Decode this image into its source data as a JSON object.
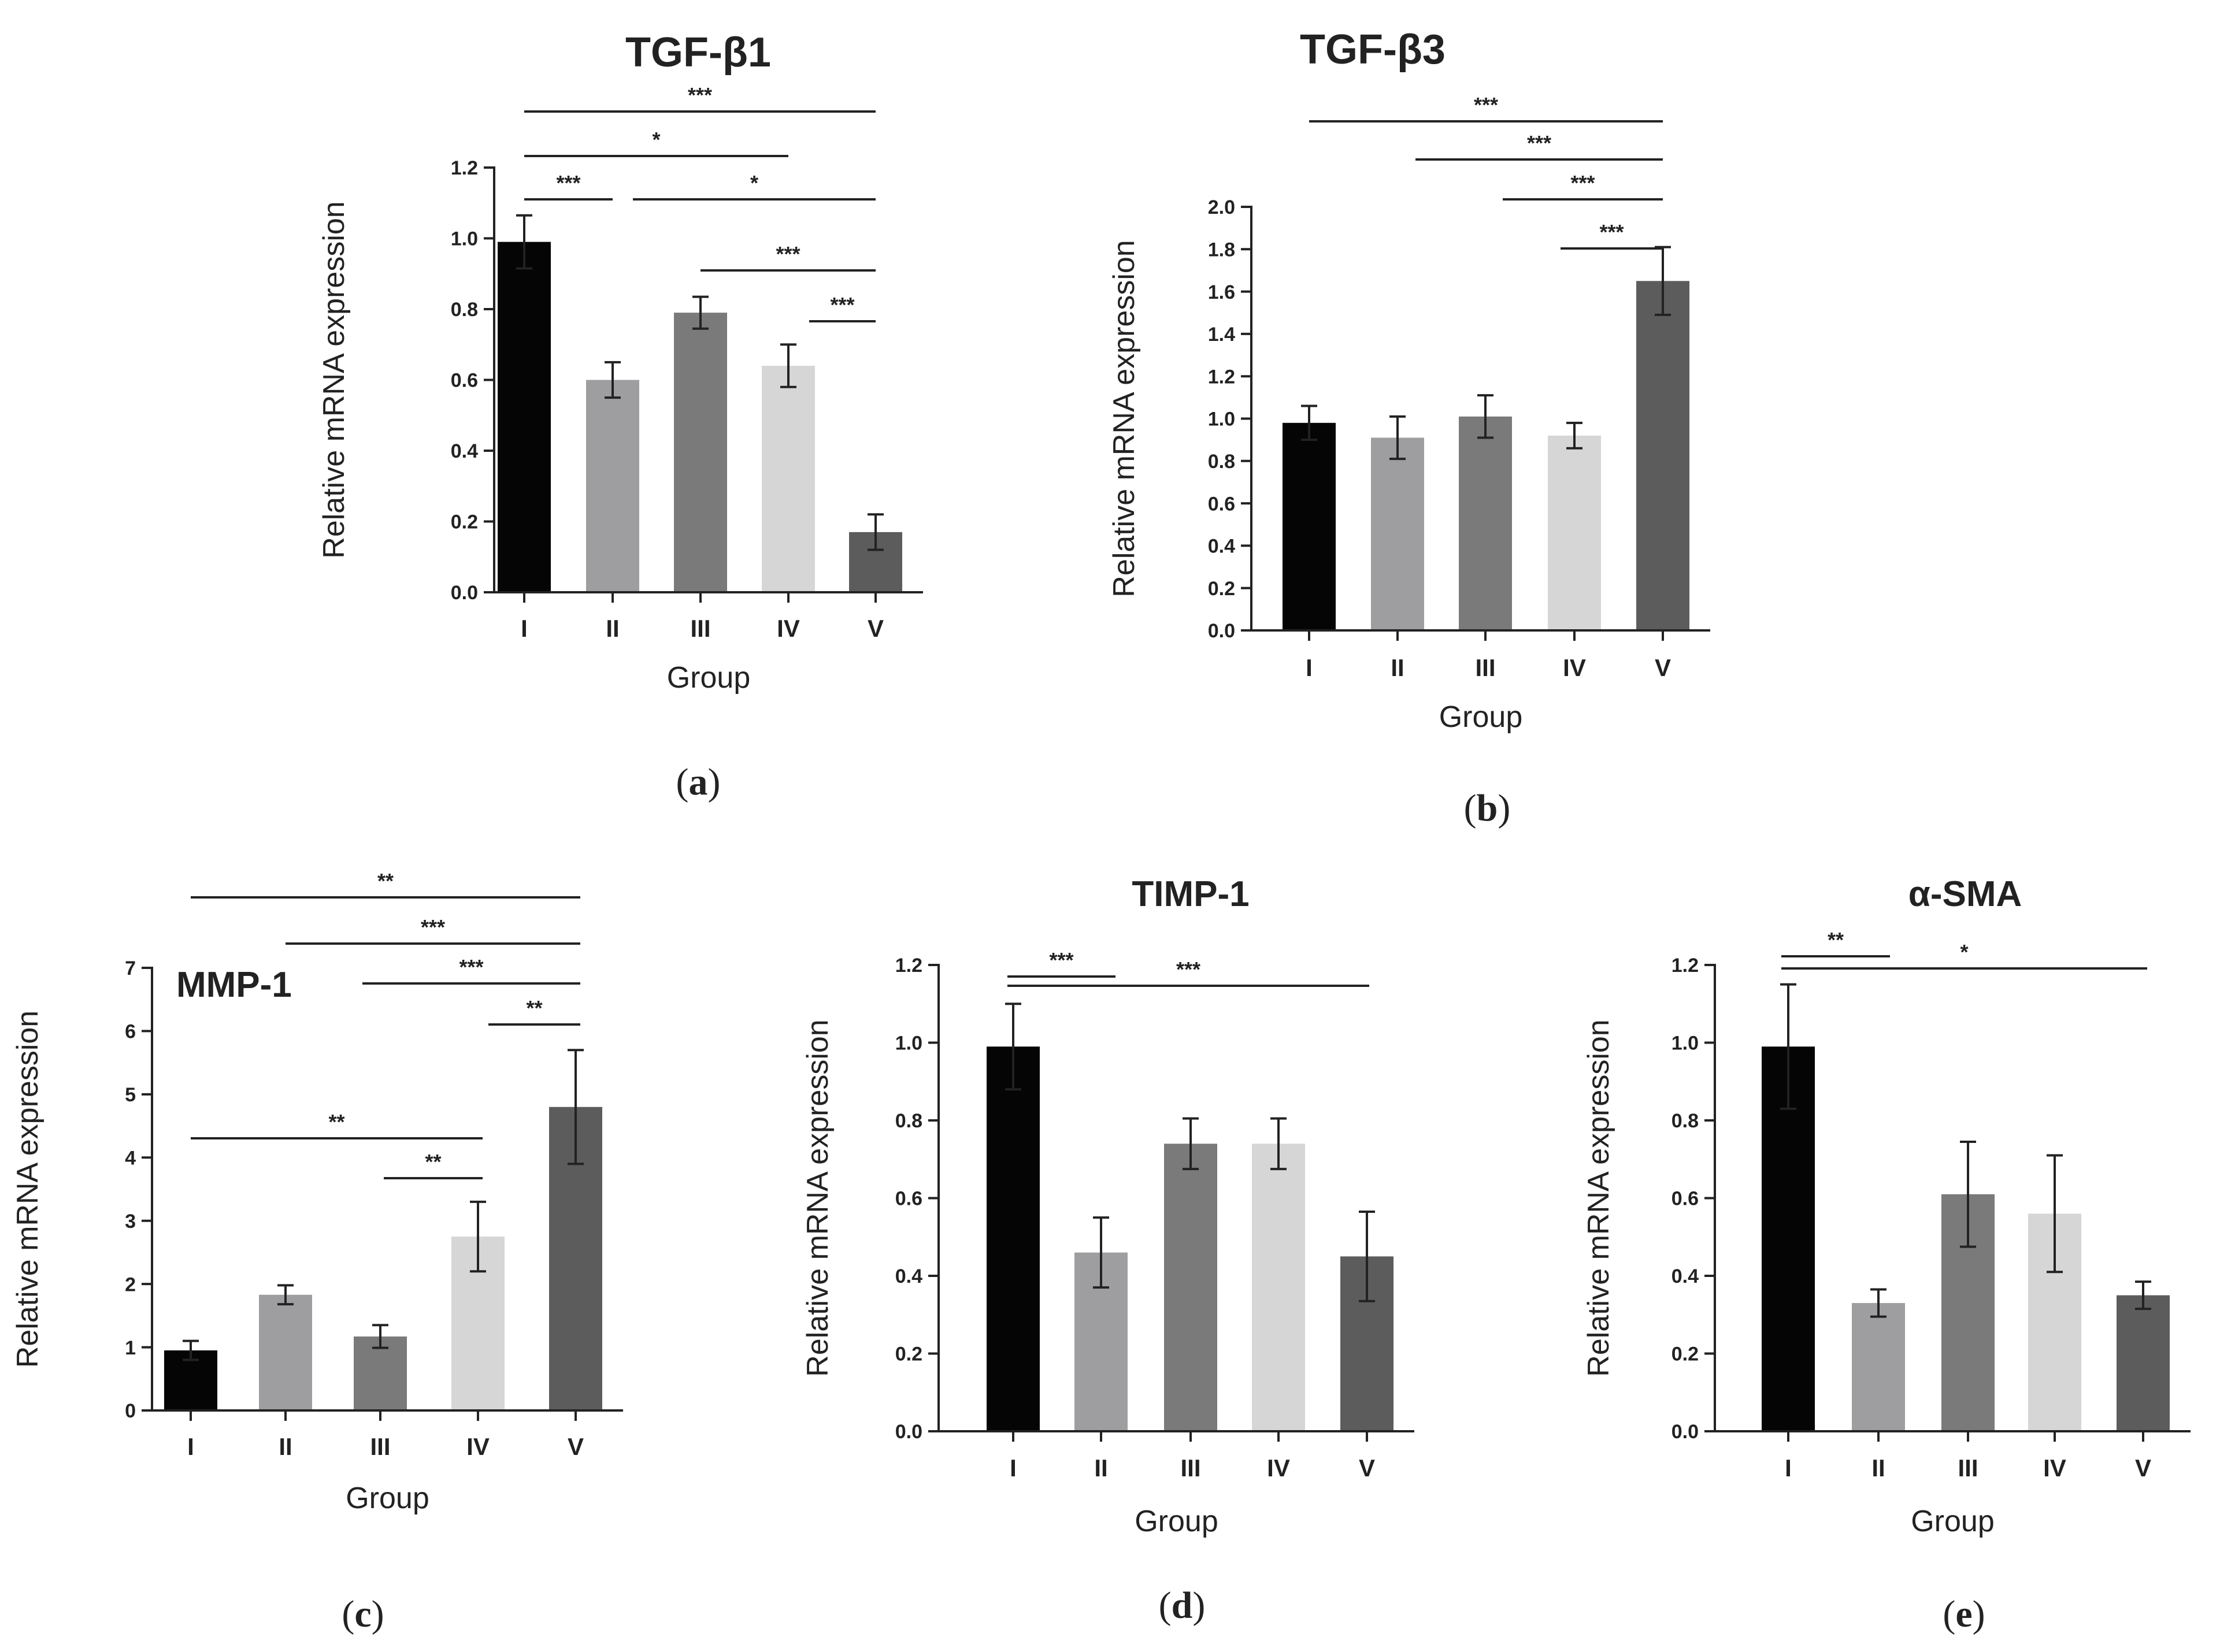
{
  "figure": {
    "panels": [
      {
        "id": "a",
        "label_open": "(",
        "label_letter": "a",
        "label_close": ")"
      },
      {
        "id": "b",
        "label_open": "(",
        "label_letter": "b",
        "label_close": ")"
      },
      {
        "id": "c",
        "label_open": "(",
        "label_letter": "c",
        "label_close": ")"
      },
      {
        "id": "d",
        "label_open": "(",
        "label_letter": "d",
        "label_close": ")"
      },
      {
        "id": "e",
        "label_open": "(",
        "label_letter": "e",
        "label_close": ")"
      }
    ]
  },
  "colors": {
    "I": "#050505",
    "II": "#9e9ea1",
    "III": "#7a7a7a",
    "IV": "#d6d6d6",
    "V": "#5c5c5c",
    "axis": "#222222"
  },
  "chart_data": [
    {
      "type": "bar",
      "title": "TGF-β1",
      "xlabel": "Group",
      "ylabel": "Relative mRNA expression",
      "categories": [
        "I",
        "II",
        "III",
        "IV",
        "V"
      ],
      "values": [
        0.99,
        0.6,
        0.79,
        0.64,
        0.17
      ],
      "errors": [
        0.075,
        0.05,
        0.045,
        0.06,
        0.05
      ],
      "ylim": [
        0,
        1.2
      ],
      "yticks": [
        0.0,
        0.2,
        0.4,
        0.6,
        0.8,
        1.0,
        1.2
      ],
      "tick_decimals": 1,
      "grid": false,
      "significance": [
        {
          "from": "I",
          "to": "V",
          "label": "***"
        },
        {
          "from": "I",
          "to": "IV",
          "label": "*"
        },
        {
          "from": "I",
          "to": "II",
          "label": "***"
        },
        {
          "from": "II",
          "to": "V",
          "label": "*"
        },
        {
          "from": "III",
          "to": "V",
          "label": "***"
        },
        {
          "from": "IV",
          "to": "V",
          "label": "***"
        }
      ]
    },
    {
      "type": "bar",
      "title": "TGF-β3",
      "xlabel": "Group",
      "ylabel": "Relative mRNA expression",
      "categories": [
        "I",
        "II",
        "III",
        "IV",
        "V"
      ],
      "values": [
        0.98,
        0.91,
        1.01,
        0.92,
        1.65
      ],
      "errors": [
        0.08,
        0.1,
        0.1,
        0.06,
        0.16
      ],
      "ylim": [
        0,
        2.0
      ],
      "yticks": [
        0.0,
        0.2,
        0.4,
        0.6,
        0.8,
        1.0,
        1.2,
        1.4,
        1.6,
        1.8,
        2.0
      ],
      "tick_decimals": 1,
      "grid": false,
      "significance": [
        {
          "from": "I",
          "to": "V",
          "label": "***"
        },
        {
          "from": "II",
          "to": "V",
          "label": "***"
        },
        {
          "from": "III",
          "to": "V",
          "label": "***"
        },
        {
          "from": "IV",
          "to": "V",
          "label": "***"
        }
      ]
    },
    {
      "type": "bar",
      "title": "MMP-1",
      "xlabel": "Group",
      "ylabel": "Relative mRNA expression",
      "categories": [
        "I",
        "II",
        "III",
        "IV",
        "V"
      ],
      "values": [
        0.95,
        1.83,
        1.17,
        2.75,
        4.8
      ],
      "errors": [
        0.15,
        0.15,
        0.18,
        0.55,
        0.9
      ],
      "ylim": [
        0,
        7
      ],
      "yticks": [
        0,
        1,
        2,
        3,
        4,
        5,
        6,
        7
      ],
      "tick_decimals": 0,
      "grid": false,
      "significance": [
        {
          "from": "I",
          "to": "V",
          "label": "**"
        },
        {
          "from": "II",
          "to": "V",
          "label": "***"
        },
        {
          "from": "III",
          "to": "V",
          "label": "***"
        },
        {
          "from": "IV",
          "to": "V",
          "label": "**"
        },
        {
          "from": "I",
          "to": "IV",
          "label": "**"
        },
        {
          "from": "III",
          "to": "IV",
          "label": "**"
        }
      ]
    },
    {
      "type": "bar",
      "title": "TIMP-1",
      "xlabel": "Group",
      "ylabel": "Relative mRNA expression",
      "categories": [
        "I",
        "II",
        "III",
        "IV",
        "V"
      ],
      "values": [
        0.99,
        0.46,
        0.74,
        0.74,
        0.45
      ],
      "errors": [
        0.11,
        0.09,
        0.065,
        0.065,
        0.115
      ],
      "ylim": [
        0,
        1.2
      ],
      "yticks": [
        0.0,
        0.2,
        0.4,
        0.6,
        0.8,
        1.0,
        1.2
      ],
      "tick_decimals": 1,
      "grid": false,
      "significance": [
        {
          "from": "I",
          "to": "II",
          "label": "***"
        },
        {
          "from": "I",
          "to": "V",
          "label": "***"
        }
      ]
    },
    {
      "type": "bar",
      "title": "α-SMA",
      "xlabel": "Group",
      "ylabel": "Relative mRNA expression",
      "categories": [
        "I",
        "II",
        "III",
        "IV",
        "V"
      ],
      "values": [
        0.99,
        0.33,
        0.61,
        0.56,
        0.35
      ],
      "errors": [
        0.16,
        0.035,
        0.135,
        0.15,
        0.035
      ],
      "ylim": [
        0,
        1.2
      ],
      "yticks": [
        0.0,
        0.2,
        0.4,
        0.6,
        0.8,
        1.0,
        1.2
      ],
      "tick_decimals": 1,
      "grid": false,
      "significance": [
        {
          "from": "I",
          "to": "II",
          "label": "**"
        },
        {
          "from": "I",
          "to": "V",
          "label": "*"
        }
      ]
    }
  ]
}
